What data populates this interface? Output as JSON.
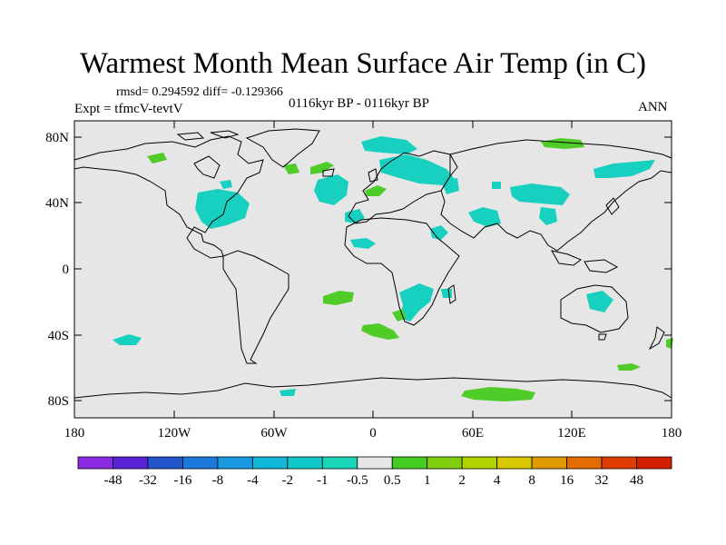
{
  "figure": {
    "title": "Warmest Month Mean Surface Air Temp (in C)",
    "stats_line": "rmsd= 0.294592 diff= -0.129366",
    "period_label": "0116kyr BP - 0116kyr BP",
    "experiment_label": "Expt = tfmcV-tevtV",
    "season_label": "ANN"
  },
  "map": {
    "projection": "cylindrical equidistant",
    "lon_range": [
      -180,
      180
    ],
    "lat_range": [
      -90,
      90
    ],
    "background_color": "#e6e6e6",
    "coastline_color": "#000000",
    "lat_ticks": [
      "80N",
      "40N",
      "0",
      "40S",
      "80S"
    ],
    "lon_ticks": [
      "180",
      "120W",
      "60W",
      "0",
      "60E",
      "120E",
      "180"
    ]
  },
  "colorbar": {
    "labels": [
      "-48",
      "-32",
      "-16",
      "-8",
      "-4",
      "-2",
      "-1",
      "-0.5",
      "0.5",
      "1",
      "2",
      "4",
      "8",
      "16",
      "32",
      "48"
    ],
    "colors": [
      "#8a2be2",
      "#5a22d8",
      "#2255cc",
      "#1b78dd",
      "#1a98e0",
      "#10b7d8",
      "#10c8c8",
      "#1ad6b8",
      "#e6e6e6",
      "#44cc22",
      "#80d010",
      "#b0d400",
      "#d8c800",
      "#e09a00",
      "#e46c00",
      "#e03c00",
      "#d01e00"
    ]
  },
  "anomaly_colors": {
    "cool": "#18d0c0",
    "warm": "#50cc28"
  }
}
